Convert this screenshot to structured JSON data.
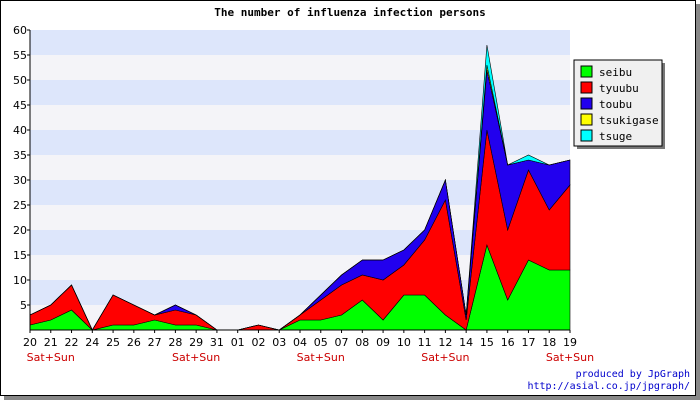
{
  "chart_data": {
    "type": "area",
    "stacked": true,
    "title": "The number of influenza infection persons",
    "xlabel": "",
    "ylabel": "",
    "ylim": [
      0,
      60
    ],
    "yticks": [
      5,
      10,
      15,
      20,
      25,
      30,
      35,
      40,
      45,
      50,
      55,
      60
    ],
    "categories": [
      "20",
      "21",
      "22",
      "24",
      "25",
      "26",
      "27",
      "28",
      "29",
      "31",
      "01",
      "02",
      "03",
      "04",
      "05",
      "07",
      "08",
      "09",
      "10",
      "11",
      "12",
      "14",
      "15",
      "16",
      "17",
      "18",
      "19"
    ],
    "annotations": [
      {
        "index": 1,
        "text": "Sat+Sun"
      },
      {
        "index": 8,
        "text": "Sat+Sun"
      },
      {
        "index": 14,
        "text": "Sat+Sun"
      },
      {
        "index": 20,
        "text": "Sat+Sun"
      },
      {
        "index": 26,
        "text": "Sat+Sun"
      }
    ],
    "grid": "horizontal bands",
    "legend_position": "top-right",
    "series": [
      {
        "name": "seibu",
        "color": "#00ff00",
        "values": [
          1,
          2,
          4,
          0,
          1,
          1,
          2,
          1,
          1,
          0,
          0,
          0,
          0,
          2,
          2,
          3,
          6,
          2,
          7,
          7,
          3,
          0,
          17,
          6,
          14,
          12,
          12
        ]
      },
      {
        "name": "tyuubu",
        "color": "#ff0000",
        "values": [
          2,
          3,
          5,
          0,
          6,
          4,
          1,
          3,
          2,
          0,
          0,
          1,
          0,
          1,
          4,
          6,
          5,
          8,
          6,
          11,
          23,
          2,
          23,
          14,
          18,
          12,
          17
        ]
      },
      {
        "name": "toubu",
        "color": "#2200ee",
        "values": [
          0,
          0,
          0,
          0,
          0,
          0,
          0,
          1,
          0,
          0,
          0,
          0,
          0,
          0,
          1,
          2,
          3,
          4,
          3,
          2,
          4,
          1,
          12,
          13,
          2,
          9,
          5
        ]
      },
      {
        "name": "tsukigase",
        "color": "#ffff00",
        "values": [
          0,
          0,
          0,
          0,
          0,
          0,
          0,
          0,
          0,
          0,
          0,
          0,
          0,
          0,
          0,
          0,
          0,
          0,
          0,
          0,
          0,
          0,
          1,
          0,
          0,
          0,
          0
        ]
      },
      {
        "name": "tsuge",
        "color": "#00ffff",
        "values": [
          0,
          0,
          0,
          0,
          0,
          0,
          0,
          0,
          0,
          0,
          0,
          0,
          0,
          0,
          0,
          0,
          0,
          0,
          0,
          0,
          0,
          0,
          4,
          0,
          1,
          0,
          0
        ]
      }
    ]
  },
  "credit": {
    "line1": "produced by JpGraph",
    "line2": "http://asial.co.jp/jpgraph/"
  }
}
